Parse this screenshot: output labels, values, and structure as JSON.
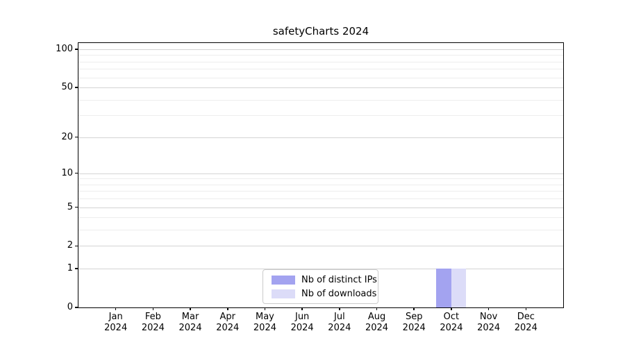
{
  "chart_data": {
    "type": "bar",
    "title": "safetyCharts 2024",
    "categories": [
      "Jan",
      "Feb",
      "Mar",
      "Apr",
      "May",
      "Jun",
      "Jul",
      "Aug",
      "Sep",
      "Oct",
      "Nov",
      "Dec"
    ],
    "category_year": "2024",
    "series": [
      {
        "name": "Nb of distinct IPs",
        "color": "#a3a3f0",
        "values": [
          0,
          0,
          0,
          0,
          0,
          0,
          0,
          0,
          0,
          1,
          0,
          0
        ]
      },
      {
        "name": "Nb of downloads",
        "color": "#dcdcf8",
        "values": [
          0,
          0,
          0,
          0,
          0,
          0,
          0,
          0,
          0,
          1,
          0,
          0
        ]
      }
    ],
    "xlabel": "",
    "ylabel": "",
    "y_scale": "log10(1+v)",
    "ylim": [
      0,
      112
    ],
    "y_major_ticks": [
      0,
      1,
      2,
      5,
      10,
      20,
      50,
      100
    ],
    "y_minor_gridlines": [
      3,
      4,
      6,
      7,
      8,
      9,
      30,
      40,
      60,
      70,
      80,
      90
    ],
    "grid": "both",
    "legend_position": "lower center",
    "colors": {
      "background": "#ffffff",
      "axis": "#000000",
      "major_grid": "#d4d4d4",
      "minor_grid": "#ededed",
      "legend_border": "#cbcbcb"
    }
  }
}
